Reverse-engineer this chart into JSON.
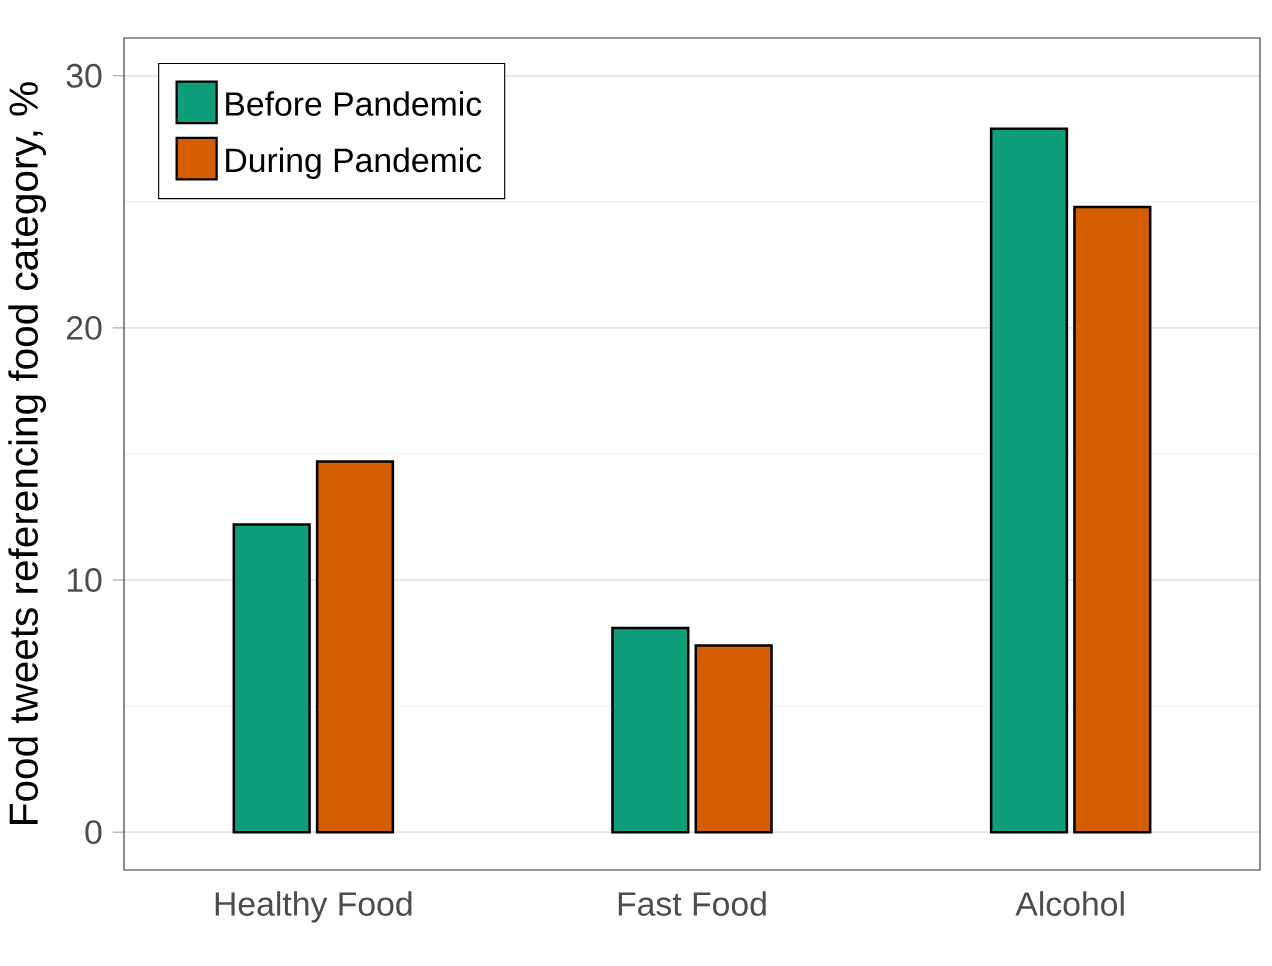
{
  "chart_data": {
    "type": "bar",
    "ylabel": "Food tweets referencing food category, %",
    "categories": [
      "Healthy Food",
      "Fast Food",
      "Alcohol"
    ],
    "series": [
      {
        "name": "Before Pandemic",
        "color": "#0f9e79",
        "values": [
          12.2,
          8.1,
          27.9
        ]
      },
      {
        "name": "During Pandemic",
        "color": "#d55e00",
        "values": [
          14.7,
          7.4,
          24.8
        ]
      }
    ],
    "ylim": [
      -1.5,
      31.5
    ],
    "yticks": [
      0,
      10,
      20,
      30
    ],
    "grid": "y",
    "legend": "top left"
  }
}
